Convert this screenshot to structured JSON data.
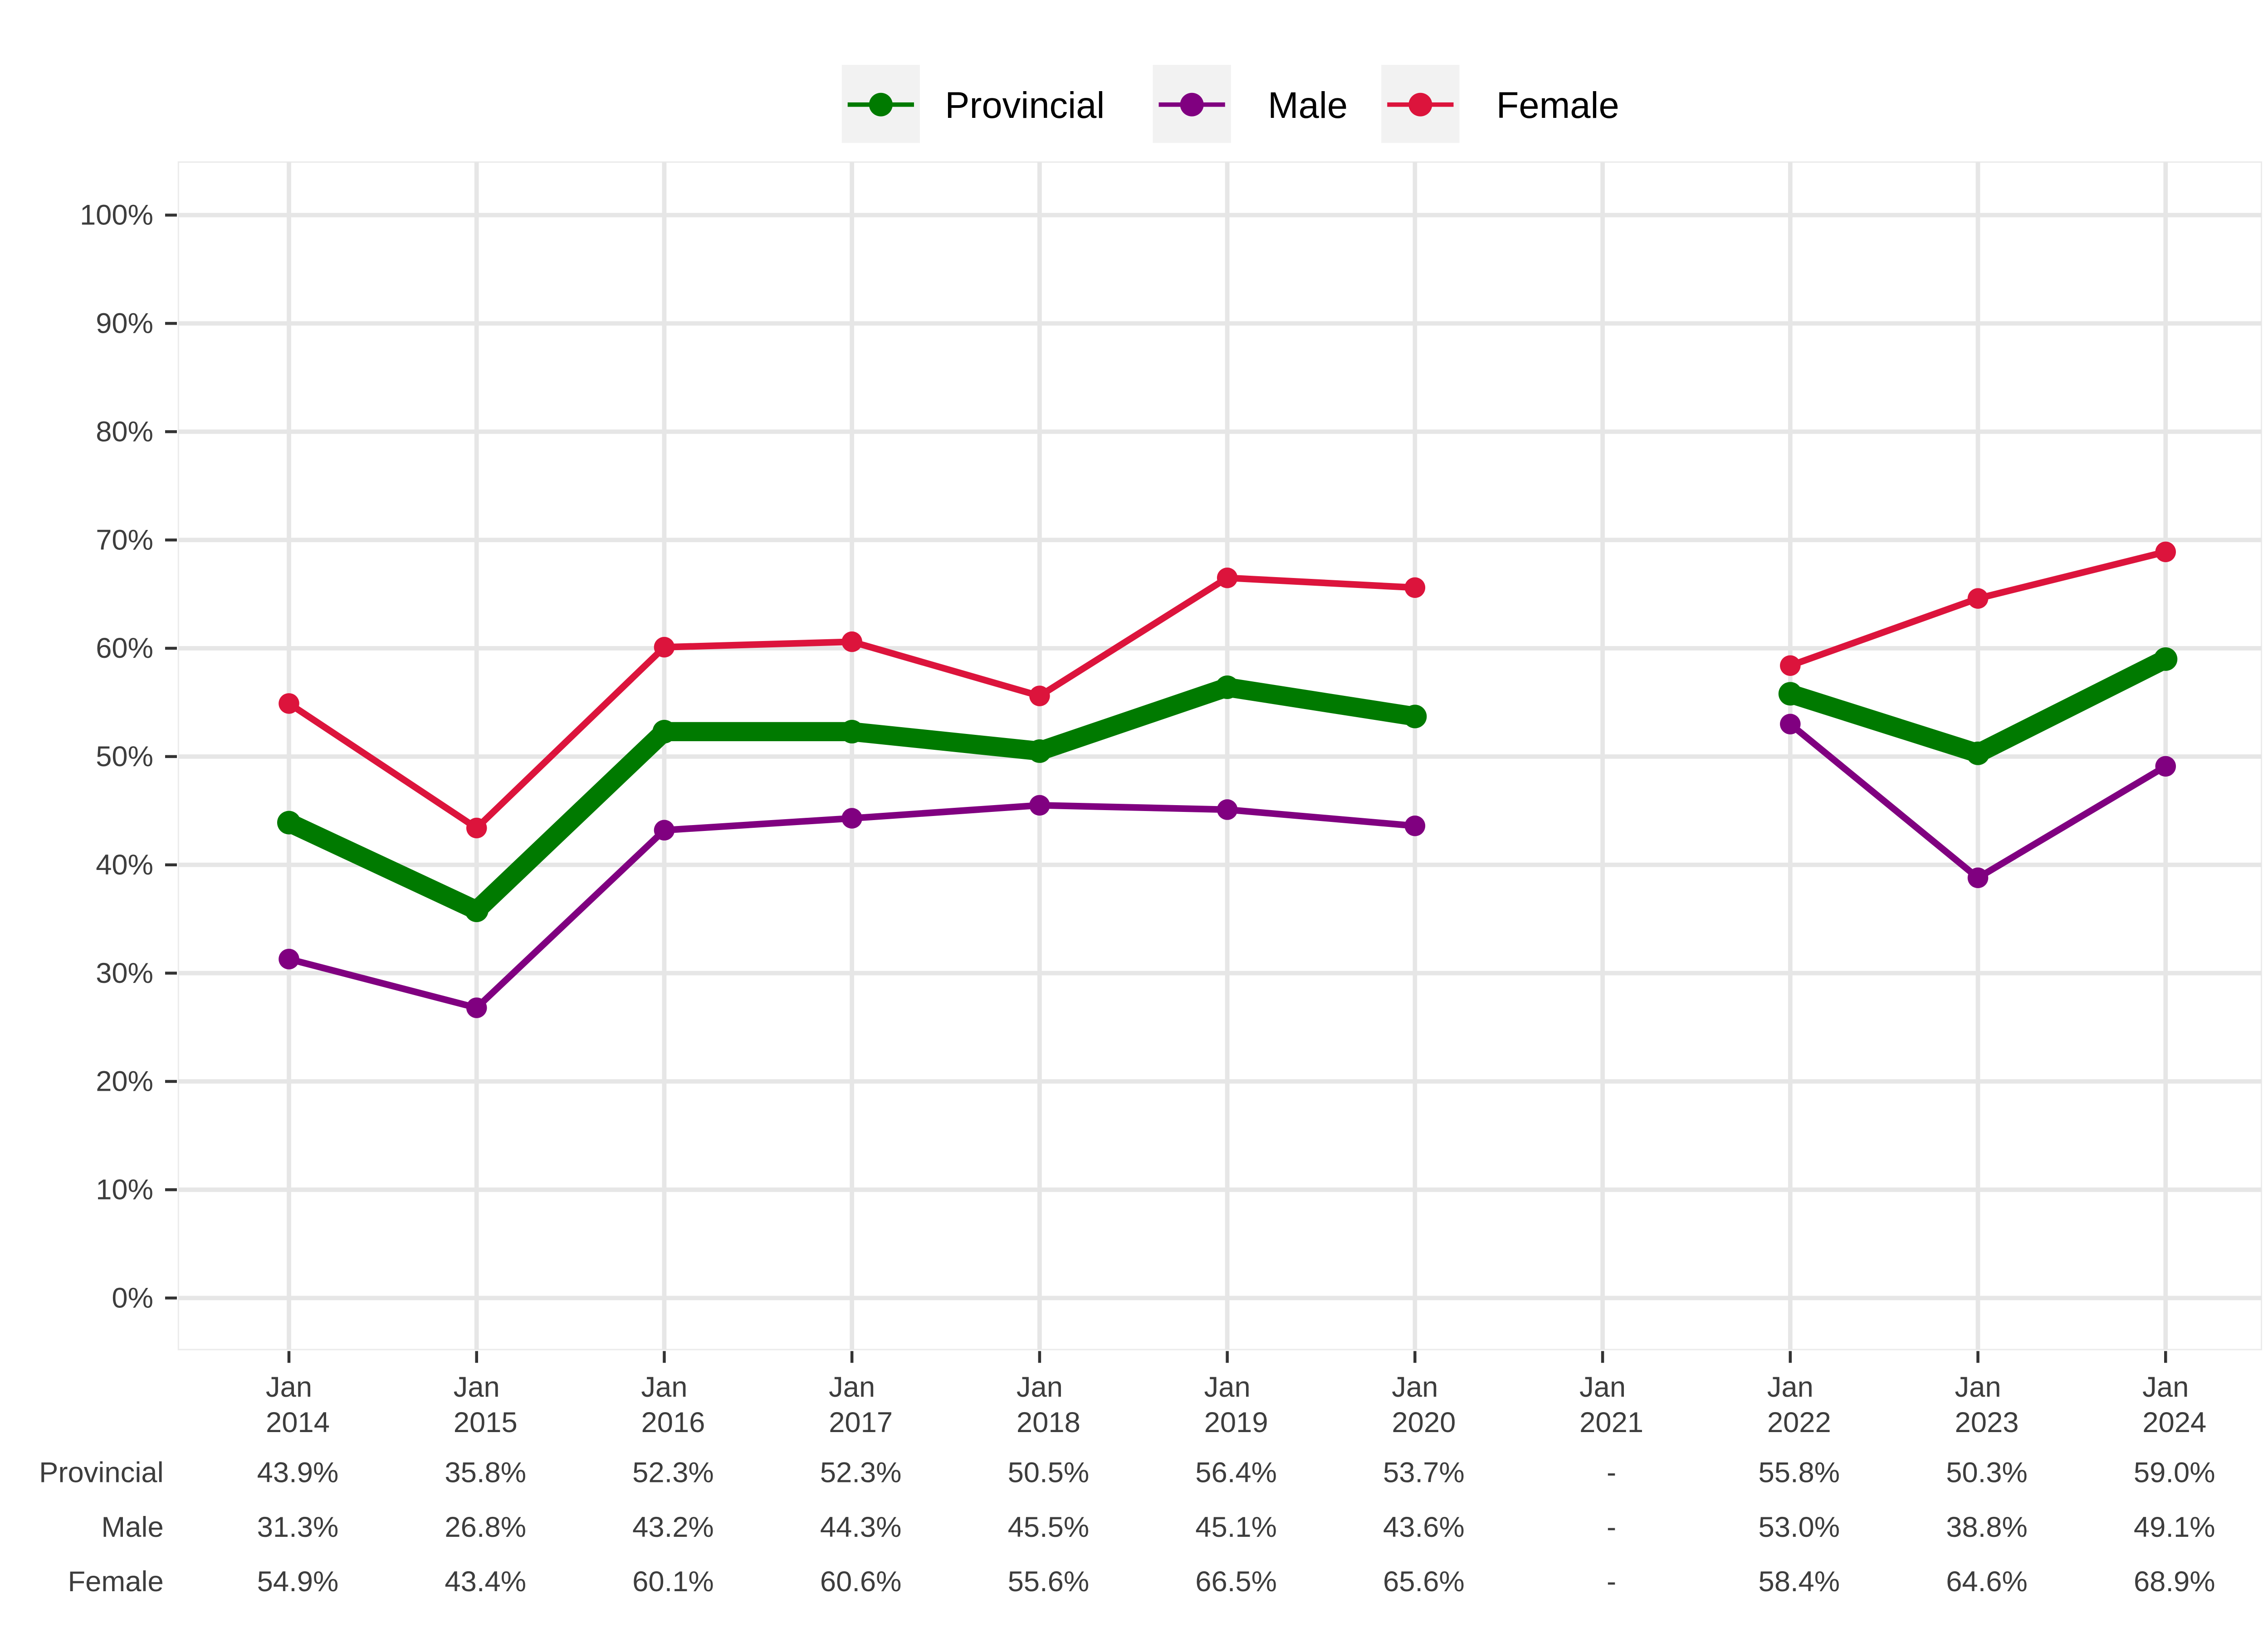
{
  "chart_data": {
    "type": "line",
    "title": "",
    "xlabel": "",
    "ylabel": "",
    "categories": [
      [
        "Jan",
        "2014"
      ],
      [
        "Jan",
        "2015"
      ],
      [
        "Jan",
        "2016"
      ],
      [
        "Jan",
        "2017"
      ],
      [
        "Jan",
        "2018"
      ],
      [
        "Jan",
        "2019"
      ],
      [
        "Jan",
        "2020"
      ],
      [
        "Jan",
        "2021"
      ],
      [
        "Jan",
        "2022"
      ],
      [
        "Jan",
        "2023"
      ],
      [
        "Jan",
        "2024"
      ]
    ],
    "ylim": [
      0,
      100
    ],
    "y_ticks": [
      "0%",
      "10%",
      "20%",
      "30%",
      "40%",
      "50%",
      "60%",
      "70%",
      "80%",
      "90%",
      "100%"
    ],
    "grid": true,
    "legend_position": "top",
    "series": [
      {
        "name": "Provincial",
        "color": "#007a00",
        "emphasis": "thick",
        "values": [
          43.9,
          35.8,
          52.3,
          52.3,
          50.5,
          56.4,
          53.7,
          null,
          55.8,
          50.3,
          59.0
        ]
      },
      {
        "name": "Male",
        "color": "#800080",
        "emphasis": "normal",
        "values": [
          31.3,
          26.8,
          43.2,
          44.3,
          45.5,
          45.1,
          43.6,
          null,
          53.0,
          38.8,
          49.1
        ]
      },
      {
        "name": "Female",
        "color": "#dc143c",
        "emphasis": "normal",
        "values": [
          54.9,
          43.4,
          60.1,
          60.6,
          55.6,
          66.5,
          65.6,
          null,
          58.4,
          64.6,
          68.9
        ]
      }
    ],
    "table": {
      "rows": [
        {
          "label": "Provincial",
          "cells": [
            "43.9%",
            "35.8%",
            "52.3%",
            "52.3%",
            "50.5%",
            "56.4%",
            "53.7%",
            "-",
            "55.8%",
            "50.3%",
            "59.0%"
          ]
        },
        {
          "label": "Male",
          "cells": [
            "31.3%",
            "26.8%",
            "43.2%",
            "44.3%",
            "45.5%",
            "45.1%",
            "43.6%",
            "-",
            "53.0%",
            "38.8%",
            "49.1%"
          ]
        },
        {
          "label": "Female",
          "cells": [
            "54.9%",
            "43.4%",
            "60.1%",
            "60.6%",
            "55.6%",
            "66.5%",
            "65.6%",
            "-",
            "58.4%",
            "64.6%",
            "68.9%"
          ]
        }
      ]
    }
  }
}
